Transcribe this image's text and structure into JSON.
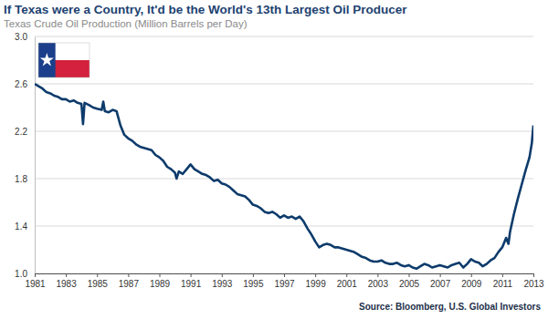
{
  "chart_data": {
    "type": "line",
    "title": "If Texas were a Country, It'd be the World's 13th Largest Oil Producer",
    "subtitle": "Texas Crude Oil Production (Million Barrels per Day)",
    "source": "Source: Bloomberg, U.S. Global Investors",
    "color": "#0d3b6b",
    "grid": true,
    "xlim": [
      1981,
      2013
    ],
    "xticks": [
      1981,
      1983,
      1985,
      1987,
      1989,
      1991,
      1993,
      1995,
      1997,
      1999,
      2001,
      2003,
      2005,
      2007,
      2009,
      2011,
      2013
    ],
    "ylim": [
      1,
      3
    ],
    "yticks": [
      {
        "value": 1,
        "label": "1.0"
      },
      1.4,
      1.8,
      2.2,
      2.6,
      {
        "value": 3,
        "label": "3.0"
      }
    ],
    "x": [
      1981.0,
      1981.25,
      1981.5,
      1981.75,
      1982.0,
      1982.25,
      1982.5,
      1982.75,
      1983.0,
      1983.25,
      1983.5,
      1983.75,
      1984.0,
      1984.1,
      1984.2,
      1984.5,
      1984.75,
      1985.0,
      1985.3,
      1985.4,
      1985.5,
      1985.75,
      1986.0,
      1986.25,
      1986.5,
      1986.75,
      1987.0,
      1987.25,
      1987.5,
      1987.75,
      1988.0,
      1988.25,
      1988.5,
      1988.75,
      1989.0,
      1989.25,
      1989.5,
      1989.75,
      1990.0,
      1990.1,
      1990.25,
      1990.5,
      1990.75,
      1991.0,
      1991.25,
      1991.5,
      1991.75,
      1992.0,
      1992.25,
      1992.5,
      1992.75,
      1993.0,
      1993.25,
      1993.5,
      1993.75,
      1994.0,
      1994.25,
      1994.5,
      1994.75,
      1995.0,
      1995.25,
      1995.5,
      1995.75,
      1996.0,
      1996.25,
      1996.5,
      1996.75,
      1997.0,
      1997.25,
      1997.5,
      1997.75,
      1998.0,
      1998.25,
      1998.5,
      1998.75,
      1999.0,
      1999.25,
      1999.5,
      1999.75,
      2000.0,
      2000.25,
      2000.5,
      2000.75,
      2001.0,
      2001.25,
      2001.5,
      2001.75,
      2002.0,
      2002.25,
      2002.5,
      2002.75,
      2003.0,
      2003.25,
      2003.5,
      2003.75,
      2004.0,
      2004.25,
      2004.5,
      2004.75,
      2005.0,
      2005.25,
      2005.5,
      2005.75,
      2006.0,
      2006.25,
      2006.5,
      2006.75,
      2007.0,
      2007.25,
      2007.5,
      2007.75,
      2008.0,
      2008.25,
      2008.5,
      2008.75,
      2009.0,
      2009.25,
      2009.5,
      2009.75,
      2010.0,
      2010.25,
      2010.5,
      2010.75,
      2011.0,
      2011.25,
      2011.4,
      2011.5,
      2011.75,
      2012.0,
      2012.25,
      2012.5,
      2012.75,
      2012.9,
      2013.0
    ],
    "values": [
      2.6,
      2.58,
      2.56,
      2.53,
      2.52,
      2.5,
      2.49,
      2.47,
      2.47,
      2.45,
      2.46,
      2.44,
      2.43,
      2.26,
      2.44,
      2.42,
      2.4,
      2.39,
      2.38,
      2.45,
      2.37,
      2.36,
      2.38,
      2.37,
      2.25,
      2.17,
      2.14,
      2.12,
      2.09,
      2.07,
      2.06,
      2.05,
      2.04,
      2.0,
      1.98,
      1.95,
      1.9,
      1.88,
      1.85,
      1.8,
      1.86,
      1.84,
      1.88,
      1.92,
      1.88,
      1.86,
      1.84,
      1.83,
      1.81,
      1.78,
      1.79,
      1.76,
      1.75,
      1.73,
      1.7,
      1.67,
      1.66,
      1.65,
      1.62,
      1.58,
      1.57,
      1.55,
      1.52,
      1.51,
      1.52,
      1.5,
      1.47,
      1.49,
      1.47,
      1.48,
      1.46,
      1.48,
      1.44,
      1.38,
      1.33,
      1.27,
      1.22,
      1.24,
      1.25,
      1.24,
      1.22,
      1.22,
      1.21,
      1.2,
      1.19,
      1.18,
      1.16,
      1.14,
      1.13,
      1.11,
      1.1,
      1.1,
      1.11,
      1.09,
      1.08,
      1.08,
      1.09,
      1.07,
      1.06,
      1.07,
      1.05,
      1.04,
      1.06,
      1.08,
      1.07,
      1.05,
      1.06,
      1.07,
      1.06,
      1.05,
      1.07,
      1.08,
      1.09,
      1.05,
      1.08,
      1.12,
      1.1,
      1.09,
      1.06,
      1.08,
      1.11,
      1.13,
      1.18,
      1.22,
      1.3,
      1.25,
      1.35,
      1.5,
      1.63,
      1.75,
      1.87,
      1.98,
      2.1,
      2.25
    ]
  }
}
